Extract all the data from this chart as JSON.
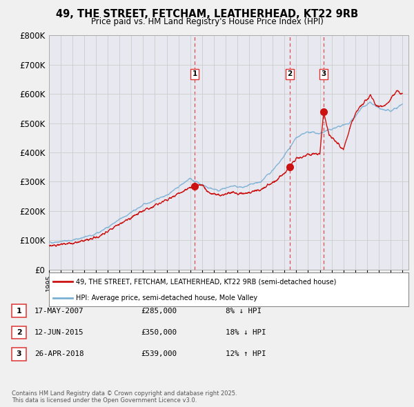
{
  "title_line1": "49, THE STREET, FETCHAM, LEATHERHEAD, KT22 9RB",
  "title_line2": "Price paid vs. HM Land Registry's House Price Index (HPI)",
  "xlim_start": 1995.0,
  "xlim_end": 2025.5,
  "ylim": [
    0,
    800000
  ],
  "yticks": [
    0,
    100000,
    200000,
    300000,
    400000,
    500000,
    600000,
    700000,
    800000
  ],
  "ytick_labels": [
    "£0",
    "£100K",
    "£200K",
    "£300K",
    "£400K",
    "£500K",
    "£600K",
    "£700K",
    "£800K"
  ],
  "hpi_color": "#7ab0d4",
  "price_color": "#cc1111",
  "dashed_line_color": "#dd3333",
  "transactions": [
    {
      "label": "1",
      "date_num": 2007.38,
      "price": 285000,
      "text": "17-MAY-2007",
      "amount": "£285,000",
      "pct": "8% ↓ HPI"
    },
    {
      "label": "2",
      "date_num": 2015.45,
      "price": 350000,
      "text": "12-JUN-2015",
      "amount": "£350,000",
      "pct": "18% ↓ HPI"
    },
    {
      "label": "3",
      "date_num": 2018.32,
      "price": 539000,
      "text": "26-APR-2018",
      "amount": "£539,000",
      "pct": "12% ↑ HPI"
    }
  ],
  "legend_price_label": "49, THE STREET, FETCHAM, LEATHERHEAD, KT22 9RB (semi-detached house)",
  "legend_hpi_label": "HPI: Average price, semi-detached house, Mole Valley",
  "footer": "Contains HM Land Registry data © Crown copyright and database right 2025.\nThis data is licensed under the Open Government Licence v3.0.",
  "background_color": "#f0f0f0",
  "plot_bg_color": "#e8e8f0"
}
